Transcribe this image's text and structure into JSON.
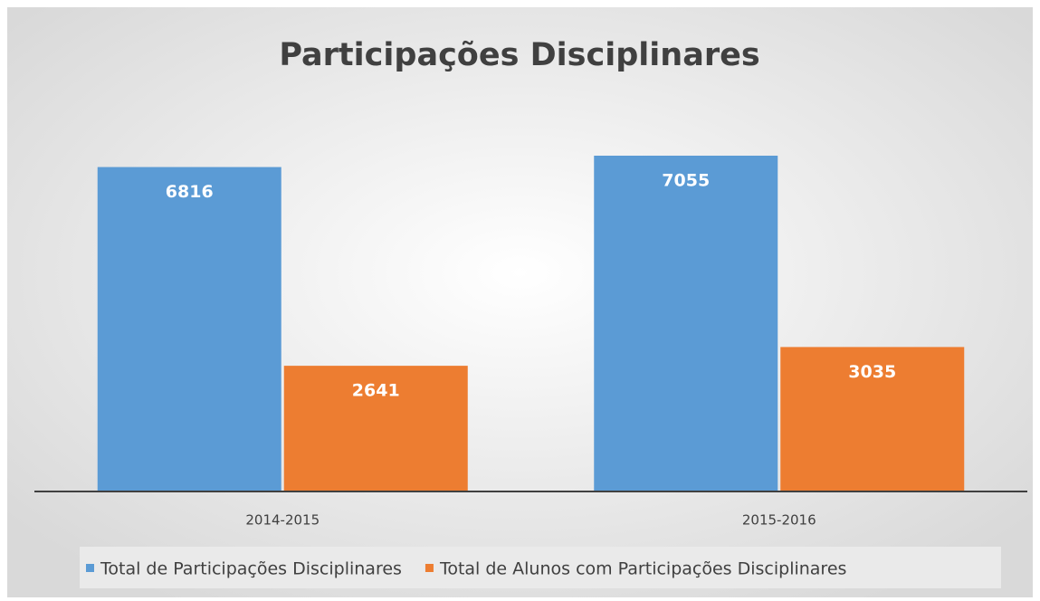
{
  "chart_data": {
    "type": "bar",
    "title": "Participações Disciplinares",
    "categories": [
      "2014-2015",
      "2015-2016"
    ],
    "series": [
      {
        "name": "Total de Participações Disciplinares",
        "color": "#5b9bd5",
        "values": [
          6816,
          7055
        ]
      },
      {
        "name": "Total de Alunos com Participações Disciplinares",
        "color": "#ed7d31",
        "values": [
          2641,
          3035
        ]
      }
    ],
    "legend": "bottom"
  }
}
